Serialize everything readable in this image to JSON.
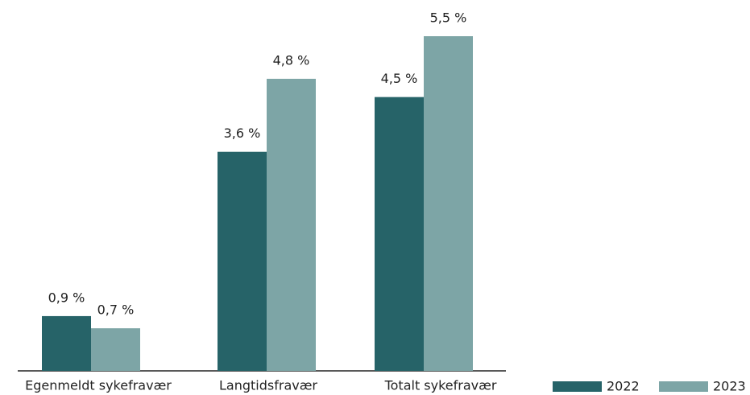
{
  "chart_data": {
    "type": "bar",
    "categories": [
      "Egenmeldt sykefravær",
      "Langtidsfravær",
      "Totalt sykefravær"
    ],
    "series": [
      {
        "name": "2022",
        "color": "#266368",
        "values": [
          0.9,
          3.6,
          4.5
        ],
        "value_labels": [
          "0,9 %",
          "3,6 %",
          "4,5 %"
        ]
      },
      {
        "name": "2023",
        "color": "#7da5a6",
        "values": [
          0.7,
          4.8,
          5.5
        ],
        "value_labels": [
          "0,7 %",
          "4,8 %",
          "5,5 %"
        ]
      }
    ],
    "legend": "bottom-right"
  }
}
